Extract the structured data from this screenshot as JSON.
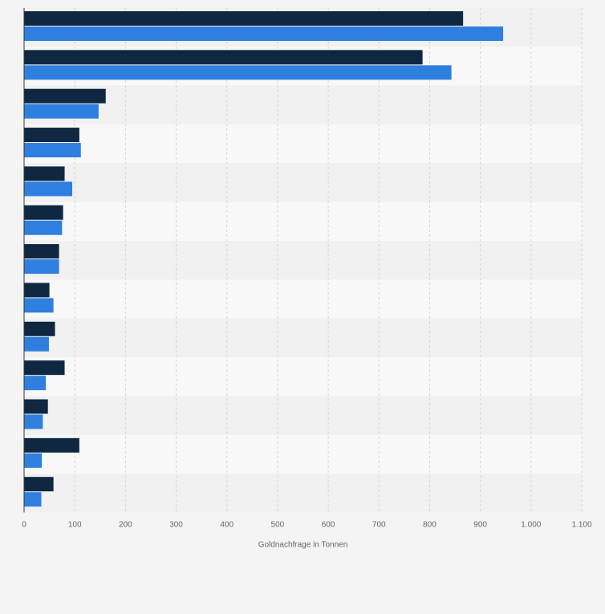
{
  "chart_data": {
    "type": "bar",
    "orientation": "horizontal",
    "categories": [
      "",
      "",
      "",
      "",
      "",
      "",
      "",
      "",
      "",
      "",
      "",
      "",
      ""
    ],
    "series": [
      {
        "color": "#0f2741",
        "values": [
          866,
          786,
          161,
          109,
          80,
          77,
          69,
          50,
          61,
          80,
          47,
          109,
          58
        ]
      },
      {
        "color": "#2f7fe0",
        "values": [
          945,
          843,
          147,
          112,
          95,
          75,
          69,
          58,
          49,
          43,
          37,
          35,
          34
        ]
      }
    ],
    "xlabel": "Goldnachfrage in Tonnen",
    "xlim": [
      0,
      1100
    ],
    "ticks": [
      0,
      100,
      200,
      300,
      400,
      500,
      600,
      700,
      800,
      900,
      1000,
      1100
    ],
    "tick_labels": [
      "0",
      "100",
      "200",
      "300",
      "400",
      "500",
      "600",
      "700",
      "800",
      "900",
      "1.000",
      "1.100"
    ],
    "grid": true,
    "legend": "none"
  }
}
